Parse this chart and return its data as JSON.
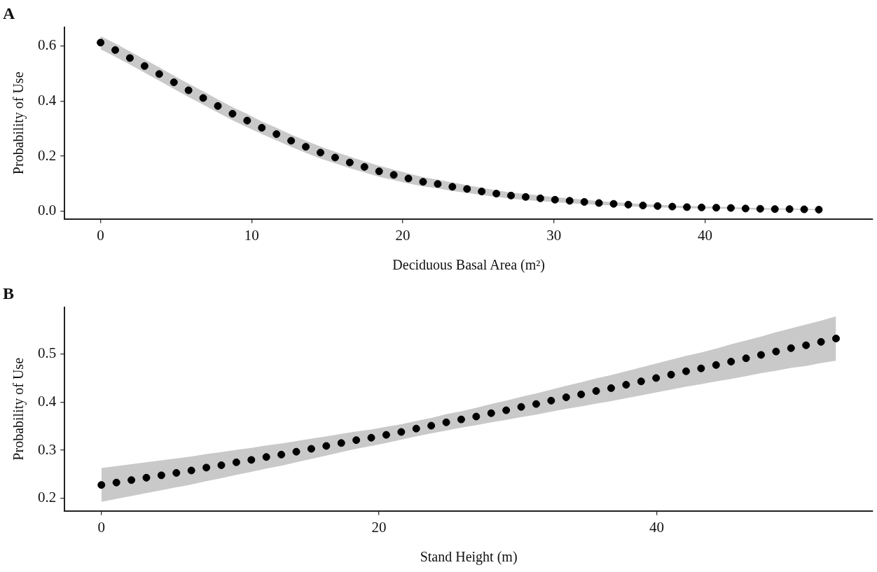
{
  "chart_data": [
    {
      "type": "scatter",
      "title": "A",
      "xlabel": "Deciduous Basal Area (m²)",
      "ylabel": "Probability of Use",
      "xlim": [
        -2.38,
        51.1
      ],
      "ylim": [
        -0.028,
        0.668
      ],
      "xticks": [
        0,
        10,
        20,
        30,
        40
      ],
      "yticks": [
        {
          "value": 0,
          "label": "0.0"
        },
        {
          "value": 0.2,
          "label": "0.2"
        },
        {
          "value": 0.4,
          "label": "0.4"
        },
        {
          "value": 0.6,
          "label": "0.6"
        }
      ],
      "grid": false,
      "legend": false,
      "marker": "circle",
      "series": [
        {
          "color": "#000000",
          "x": [
            0,
            0.97,
            1.94,
            2.91,
            3.88,
            4.85,
            5.82,
            6.79,
            7.76,
            8.73,
            9.7,
            10.67,
            11.64,
            12.61,
            13.58,
            14.55,
            15.52,
            16.49,
            17.46,
            18.43,
            19.4,
            20.37,
            21.34,
            22.31,
            23.28,
            24.25,
            25.22,
            26.19,
            27.16,
            28.13,
            29.1,
            30.07,
            31.04,
            32.01,
            32.98,
            33.95,
            34.92,
            35.89,
            36.86,
            37.83,
            38.8,
            39.77,
            40.74,
            41.71,
            42.68,
            43.65,
            44.62,
            45.59,
            46.56,
            47.53
          ],
          "values": [
            0.612,
            0.585,
            0.556,
            0.527,
            0.498,
            0.468,
            0.439,
            0.411,
            0.382,
            0.354,
            0.329,
            0.303,
            0.28,
            0.256,
            0.234,
            0.213,
            0.195,
            0.177,
            0.161,
            0.145,
            0.132,
            0.119,
            0.107,
            0.099,
            0.089,
            0.081,
            0.072,
            0.064,
            0.057,
            0.052,
            0.047,
            0.042,
            0.038,
            0.034,
            0.03,
            0.027,
            0.024,
            0.021,
            0.019,
            0.017,
            0.015,
            0.014,
            0.013,
            0.012,
            0.01,
            0.009,
            0.008,
            0.008,
            0.007,
            0.006
          ],
          "lower": [
            0.588,
            0.561,
            0.532,
            0.503,
            0.474,
            0.444,
            0.415,
            0.387,
            0.358,
            0.33,
            0.305,
            0.28,
            0.257,
            0.234,
            0.212,
            0.191,
            0.174,
            0.156,
            0.141,
            0.125,
            0.113,
            0.101,
            0.09,
            0.083,
            0.074,
            0.067,
            0.059,
            0.052,
            0.046,
            0.041,
            0.037,
            0.033,
            0.029,
            0.026,
            0.023,
            0.021,
            0.018,
            0.016,
            0.014,
            0.013,
            0.011,
            0.01,
            0.01,
            0.009,
            0.007,
            0.006,
            0.006,
            0.006,
            0.005,
            0.004
          ],
          "upper": [
            0.636,
            0.609,
            0.58,
            0.551,
            0.522,
            0.492,
            0.463,
            0.435,
            0.406,
            0.378,
            0.353,
            0.326,
            0.303,
            0.278,
            0.256,
            0.235,
            0.216,
            0.198,
            0.181,
            0.165,
            0.151,
            0.137,
            0.124,
            0.115,
            0.104,
            0.095,
            0.085,
            0.076,
            0.068,
            0.063,
            0.057,
            0.051,
            0.047,
            0.042,
            0.037,
            0.033,
            0.03,
            0.026,
            0.024,
            0.021,
            0.019,
            0.018,
            0.016,
            0.015,
            0.013,
            0.012,
            0.01,
            0.01,
            0.009,
            0.008
          ]
        }
      ]
    },
    {
      "type": "scatter",
      "title": "B",
      "xlabel": "Stand Height (m)",
      "ylabel": "Probability of Use",
      "xlim": [
        -2.65,
        55.57
      ],
      "ylim": [
        0.174,
        0.597
      ],
      "xticks": [
        0,
        20,
        40
      ],
      "yticks": [
        0.2,
        0.3,
        0.4,
        0.5
      ],
      "grid": false,
      "legend": false,
      "marker": "circle",
      "series": [
        {
          "color": "#000000",
          "x": [
            0,
            1.08,
            2.16,
            3.24,
            4.32,
            5.4,
            6.48,
            7.56,
            8.64,
            9.72,
            10.8,
            11.88,
            12.96,
            14.04,
            15.12,
            16.2,
            17.28,
            18.36,
            19.44,
            20.52,
            21.6,
            22.68,
            23.76,
            24.84,
            25.92,
            27,
            28.08,
            29.16,
            30.24,
            31.32,
            32.4,
            33.48,
            34.56,
            35.64,
            36.72,
            37.8,
            38.88,
            39.96,
            41.04,
            42.12,
            43.2,
            44.28,
            45.36,
            46.44,
            47.52,
            48.6,
            49.68,
            50.76,
            51.84,
            52.92
          ],
          "values": [
            0.228,
            0.233,
            0.238,
            0.243,
            0.248,
            0.253,
            0.258,
            0.264,
            0.269,
            0.275,
            0.28,
            0.286,
            0.291,
            0.297,
            0.303,
            0.309,
            0.315,
            0.321,
            0.326,
            0.332,
            0.338,
            0.345,
            0.351,
            0.358,
            0.364,
            0.37,
            0.377,
            0.383,
            0.39,
            0.396,
            0.403,
            0.41,
            0.416,
            0.423,
            0.429,
            0.436,
            0.443,
            0.45,
            0.457,
            0.464,
            0.47,
            0.477,
            0.484,
            0.491,
            0.498,
            0.505,
            0.512,
            0.518,
            0.525,
            0.532
          ],
          "lower": [
            0.193,
            0.199,
            0.205,
            0.211,
            0.217,
            0.223,
            0.229,
            0.236,
            0.242,
            0.249,
            0.255,
            0.262,
            0.268,
            0.275,
            0.282,
            0.289,
            0.296,
            0.303,
            0.309,
            0.315,
            0.322,
            0.329,
            0.335,
            0.341,
            0.347,
            0.352,
            0.358,
            0.363,
            0.369,
            0.374,
            0.38,
            0.386,
            0.391,
            0.397,
            0.402,
            0.408,
            0.414,
            0.42,
            0.426,
            0.432,
            0.437,
            0.443,
            0.448,
            0.454,
            0.46,
            0.465,
            0.471,
            0.475,
            0.481,
            0.486
          ],
          "upper": [
            0.263,
            0.267,
            0.271,
            0.275,
            0.279,
            0.283,
            0.287,
            0.292,
            0.296,
            0.301,
            0.305,
            0.31,
            0.314,
            0.319,
            0.324,
            0.329,
            0.334,
            0.339,
            0.343,
            0.349,
            0.354,
            0.361,
            0.367,
            0.375,
            0.381,
            0.388,
            0.396,
            0.403,
            0.411,
            0.418,
            0.426,
            0.434,
            0.441,
            0.449,
            0.456,
            0.464,
            0.472,
            0.48,
            0.488,
            0.496,
            0.503,
            0.511,
            0.52,
            0.528,
            0.536,
            0.545,
            0.553,
            0.561,
            0.569,
            0.578
          ]
        }
      ]
    }
  ]
}
